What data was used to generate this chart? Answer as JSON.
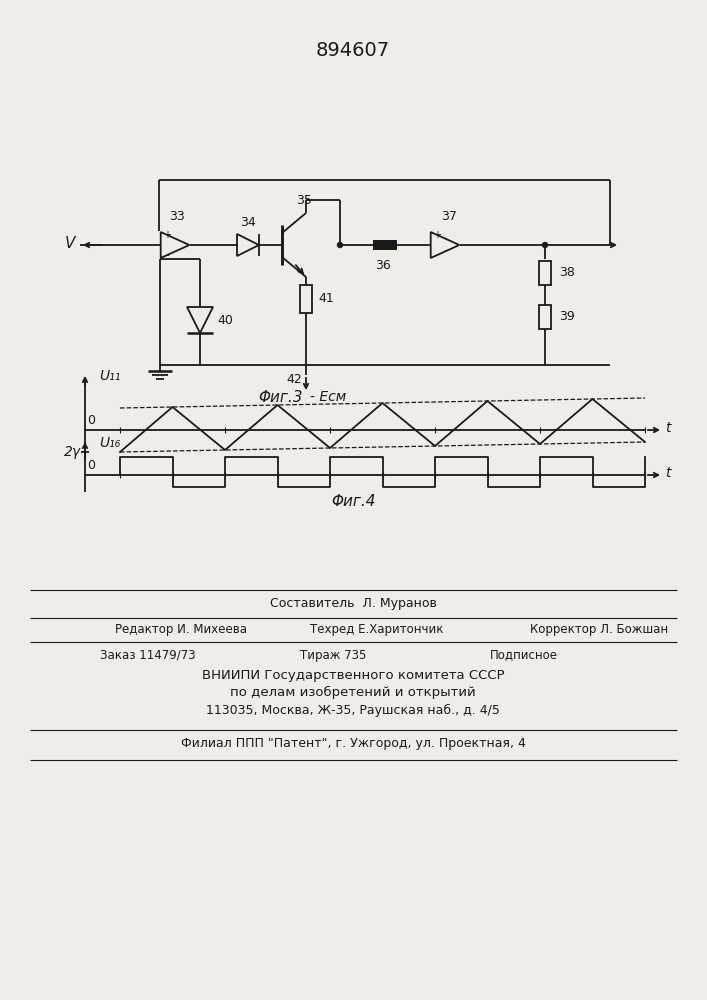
{
  "patent_number": "894607",
  "bg_color": "#f0ede8",
  "line_color": "#1a1a1a",
  "fig3_label": "Φиг.3",
  "fig4_label": "Φиг.4",
  "ecm_label": "- Eсм",
  "v_label": "V",
  "t_label": "t",
  "u11_label": "U₁₁",
  "u16_label": "U₁₆",
  "two_gamma_label": "2γ",
  "zero_label": "0",
  "footer_line0": "Составитель  Л. Муранов",
  "footer_line1a": "Редактор И. Михеева",
  "footer_line1b": "Техред Е.Харитончик",
  "footer_line1c": "Корректор Л. Божшан",
  "footer_line2a": "Заказ 11479/73",
  "footer_line2b": "Тираж 735",
  "footer_line2c": "Подписное",
  "footer_line3": "ВНИИПИ Государственного комитета СССР",
  "footer_line4": "по делам изобретений и открытий",
  "footer_line5": "113035, Москва, Ж-35, Раушская наб., д. 4/5",
  "footer_line6": "Филиал ППП \"Патент\", г. Ужгород, ул. Проектная, 4"
}
